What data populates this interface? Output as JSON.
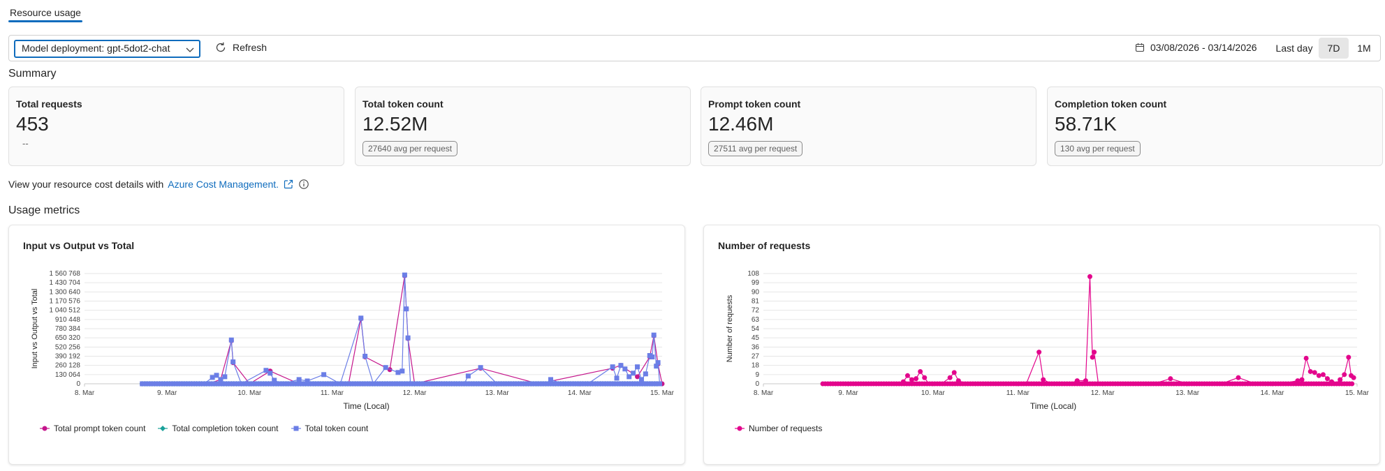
{
  "tabs": [
    {
      "label": "Resource usage"
    }
  ],
  "toolbar": {
    "model_select": "Model deployment: gpt-5dot2-chat",
    "refresh_label": "Refresh",
    "date_range": "03/08/2026 - 03/14/2026",
    "ranges": [
      "Last day",
      "7D",
      "1M"
    ],
    "selected_range": "7D"
  },
  "summary": {
    "title": "Summary",
    "cards": [
      {
        "label": "Total requests",
        "value": "453",
        "sub": "--"
      },
      {
        "label": "Total token count",
        "value": "12.52M",
        "sub": "27640 avg per request"
      },
      {
        "label": "Prompt token count",
        "value": "12.46M",
        "sub": "27511 avg per request"
      },
      {
        "label": "Completion token count",
        "value": "58.71K",
        "sub": "130 avg per request"
      }
    ]
  },
  "cost": {
    "text": "View your resource cost details with",
    "link": "Azure Cost Management."
  },
  "usage": {
    "title": "Usage metrics"
  },
  "colors": {
    "accent": "#0f6cbd",
    "prompt": "#c5168c",
    "completion": "#1aa19a",
    "total": "#6b7ee6",
    "requests": "#e3058c"
  },
  "chart_data": [
    {
      "type": "line",
      "title": "Input vs Output vs Total",
      "xlabel": "Time (Local)",
      "ylabel": "Input vs Output vs Total",
      "x_ticks": [
        "8. Mar",
        "9. Mar",
        "10. Mar",
        "11. Mar",
        "12. Mar",
        "13. Mar",
        "14. Mar",
        "15. Mar"
      ],
      "y_ticks": [
        "0",
        "130 064",
        "260 128",
        "390 192",
        "520 256",
        "650 320",
        "780 384",
        "910 448",
        "1 040 512",
        "1 170 576",
        "1 300 640",
        "1 430 704",
        "1 560 768"
      ],
      "ylim": [
        0,
        1560768
      ],
      "grid": true,
      "legend_position": "bottom",
      "x_domain": [
        8.0,
        15.0
      ],
      "series": [
        {
          "name": "Total prompt token count",
          "color": "#c5168c",
          "marker": "circle",
          "points": [
            [
              8.7,
              0
            ],
            [
              9.5,
              0
            ],
            [
              9.65,
              60000
            ],
            [
              9.78,
              610000
            ],
            [
              9.8,
              300000
            ],
            [
              10.0,
              0
            ],
            [
              10.25,
              180000
            ],
            [
              10.6,
              0
            ],
            [
              11.2,
              0
            ],
            [
              11.35,
              920000
            ],
            [
              11.4,
              380000
            ],
            [
              11.7,
              200000
            ],
            [
              11.88,
              1530000
            ],
            [
              11.9,
              1060000
            ],
            [
              11.92,
              640000
            ],
            [
              12.0,
              0
            ],
            [
              12.8,
              220000
            ],
            [
              13.5,
              0
            ],
            [
              14.4,
              220000
            ],
            [
              14.5,
              260000
            ],
            [
              14.7,
              100000
            ],
            [
              14.85,
              380000
            ],
            [
              14.9,
              680000
            ],
            [
              14.95,
              280000
            ],
            [
              15.0,
              0
            ]
          ]
        },
        {
          "name": "Total completion token count",
          "color": "#1aa19a",
          "marker": "diamond",
          "points": [
            [
              8.7,
              0
            ],
            [
              10.0,
              0
            ],
            [
              11.0,
              0
            ],
            [
              11.3,
              0
            ],
            [
              12.0,
              0
            ],
            [
              13.0,
              0
            ],
            [
              14.0,
              0
            ],
            [
              14.5,
              0
            ],
            [
              14.9,
              0
            ],
            [
              14.96,
              0
            ]
          ]
        },
        {
          "name": "Total token count",
          "color": "#6b7ee6",
          "marker": "square",
          "points": [
            [
              8.7,
              0
            ],
            [
              9.0,
              0
            ],
            [
              9.2,
              0
            ],
            [
              9.45,
              0
            ],
            [
              9.55,
              90000
            ],
            [
              9.6,
              120000
            ],
            [
              9.65,
              60000
            ],
            [
              9.7,
              100000
            ],
            [
              9.78,
              620000
            ],
            [
              9.8,
              310000
            ],
            [
              9.9,
              0
            ],
            [
              10.2,
              190000
            ],
            [
              10.25,
              150000
            ],
            [
              10.3,
              50000
            ],
            [
              10.4,
              0
            ],
            [
              10.6,
              60000
            ],
            [
              10.7,
              40000
            ],
            [
              10.9,
              130000
            ],
            [
              11.1,
              0
            ],
            [
              11.35,
              930000
            ],
            [
              11.4,
              390000
            ],
            [
              11.5,
              0
            ],
            [
              11.65,
              230000
            ],
            [
              11.8,
              160000
            ],
            [
              11.85,
              180000
            ],
            [
              11.88,
              1540000
            ],
            [
              11.9,
              1060000
            ],
            [
              11.92,
              650000
            ],
            [
              11.95,
              0
            ],
            [
              12.1,
              0
            ],
            [
              12.4,
              0
            ],
            [
              12.6,
              0
            ],
            [
              12.65,
              110000
            ],
            [
              12.8,
              230000
            ],
            [
              13.0,
              0
            ],
            [
              13.3,
              0
            ],
            [
              13.6,
              0
            ],
            [
              13.65,
              60000
            ],
            [
              13.8,
              0
            ],
            [
              14.1,
              0
            ],
            [
              14.4,
              240000
            ],
            [
              14.45,
              80000
            ],
            [
              14.5,
              260000
            ],
            [
              14.55,
              210000
            ],
            [
              14.6,
              100000
            ],
            [
              14.65,
              150000
            ],
            [
              14.7,
              240000
            ],
            [
              14.75,
              60000
            ],
            [
              14.8,
              140000
            ],
            [
              14.85,
              400000
            ],
            [
              14.88,
              380000
            ],
            [
              14.9,
              690000
            ],
            [
              14.93,
              250000
            ],
            [
              14.95,
              300000
            ],
            [
              14.97,
              0
            ]
          ]
        }
      ]
    },
    {
      "type": "line",
      "title": "Number of requests",
      "xlabel": "Time (Local)",
      "ylabel": "Number of requests",
      "x_ticks": [
        "8. Mar",
        "9. Mar",
        "10. Mar",
        "11. Mar",
        "12. Mar",
        "13. Mar",
        "14. Mar",
        "15. Mar"
      ],
      "y_ticks": [
        "0",
        "9",
        "18",
        "27",
        "36",
        "45",
        "54",
        "63",
        "72",
        "81",
        "90",
        "99",
        "108"
      ],
      "ylim": [
        0,
        108
      ],
      "grid": true,
      "legend_position": "bottom",
      "x_domain": [
        8.0,
        15.0
      ],
      "series": [
        {
          "name": "Number of requests",
          "color": "#e3058c",
          "marker": "circle",
          "points": [
            [
              8.7,
              0
            ],
            [
              9.0,
              0
            ],
            [
              9.3,
              0
            ],
            [
              9.5,
              0
            ],
            [
              9.65,
              2
            ],
            [
              9.7,
              8
            ],
            [
              9.75,
              4
            ],
            [
              9.8,
              5
            ],
            [
              9.85,
              12
            ],
            [
              9.9,
              6
            ],
            [
              9.95,
              0
            ],
            [
              10.1,
              0
            ],
            [
              10.2,
              6
            ],
            [
              10.25,
              11
            ],
            [
              10.3,
              3
            ],
            [
              10.4,
              0
            ],
            [
              10.7,
              0
            ],
            [
              11.0,
              0
            ],
            [
              11.1,
              0
            ],
            [
              11.25,
              31
            ],
            [
              11.3,
              4
            ],
            [
              11.4,
              0
            ],
            [
              11.6,
              0
            ],
            [
              11.7,
              3
            ],
            [
              11.8,
              3
            ],
            [
              11.85,
              105
            ],
            [
              11.88,
              26
            ],
            [
              11.9,
              31
            ],
            [
              11.95,
              0
            ],
            [
              12.3,
              0
            ],
            [
              12.6,
              0
            ],
            [
              12.8,
              5
            ],
            [
              13.0,
              0
            ],
            [
              13.4,
              0
            ],
            [
              13.6,
              6
            ],
            [
              13.8,
              0
            ],
            [
              14.1,
              0
            ],
            [
              14.3,
              3
            ],
            [
              14.35,
              4
            ],
            [
              14.4,
              25
            ],
            [
              14.45,
              12
            ],
            [
              14.5,
              11
            ],
            [
              14.55,
              8
            ],
            [
              14.6,
              9
            ],
            [
              14.65,
              5
            ],
            [
              14.7,
              2
            ],
            [
              14.75,
              0
            ],
            [
              14.8,
              4
            ],
            [
              14.85,
              9
            ],
            [
              14.9,
              26
            ],
            [
              14.93,
              8
            ],
            [
              14.96,
              6
            ]
          ]
        }
      ]
    }
  ]
}
